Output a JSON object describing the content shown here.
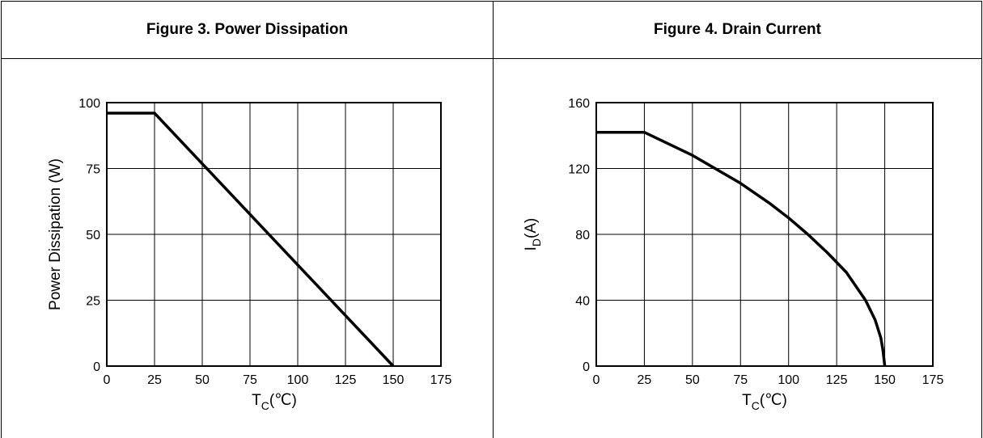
{
  "chart_data": [
    {
      "type": "line",
      "title": "Figure 3. Power Dissipation",
      "xlabel": "T_C(℃)",
      "xlabel_main": "T",
      "xlabel_sub": "C",
      "xlabel_unit": "(℃)",
      "ylabel": "Power Dissipation (W)",
      "xlim": [
        0,
        175
      ],
      "ylim": [
        0,
        100
      ],
      "xticks": [
        0,
        25,
        50,
        75,
        100,
        125,
        150,
        175
      ],
      "yticks": [
        0,
        25,
        50,
        75,
        100
      ],
      "grid": true,
      "series": [
        {
          "x": [
            0,
            25,
            150
          ],
          "y": [
            96,
            96,
            0
          ]
        }
      ]
    },
    {
      "type": "line",
      "title": "Figure 4. Drain Current",
      "xlabel": "T_C(℃)",
      "xlabel_main": "T",
      "xlabel_sub": "C",
      "xlabel_unit": "(℃)",
      "ylabel": "I_D(A)",
      "ylabel_main": "I",
      "ylabel_sub": "D",
      "ylabel_unit": "(A)",
      "xlim": [
        0,
        175
      ],
      "ylim": [
        0,
        160
      ],
      "xticks": [
        0,
        25,
        50,
        75,
        100,
        125,
        150,
        175
      ],
      "yticks": [
        0,
        40,
        80,
        120,
        160
      ],
      "grid": true,
      "series": [
        {
          "x": [
            0,
            25,
            50,
            75,
            90,
            100,
            110,
            120,
            130,
            140,
            145,
            148,
            149,
            150
          ],
          "y": [
            142,
            142,
            128,
            111,
            99,
            90,
            80,
            69,
            57,
            40,
            28,
            17,
            10,
            0
          ]
        }
      ]
    }
  ]
}
